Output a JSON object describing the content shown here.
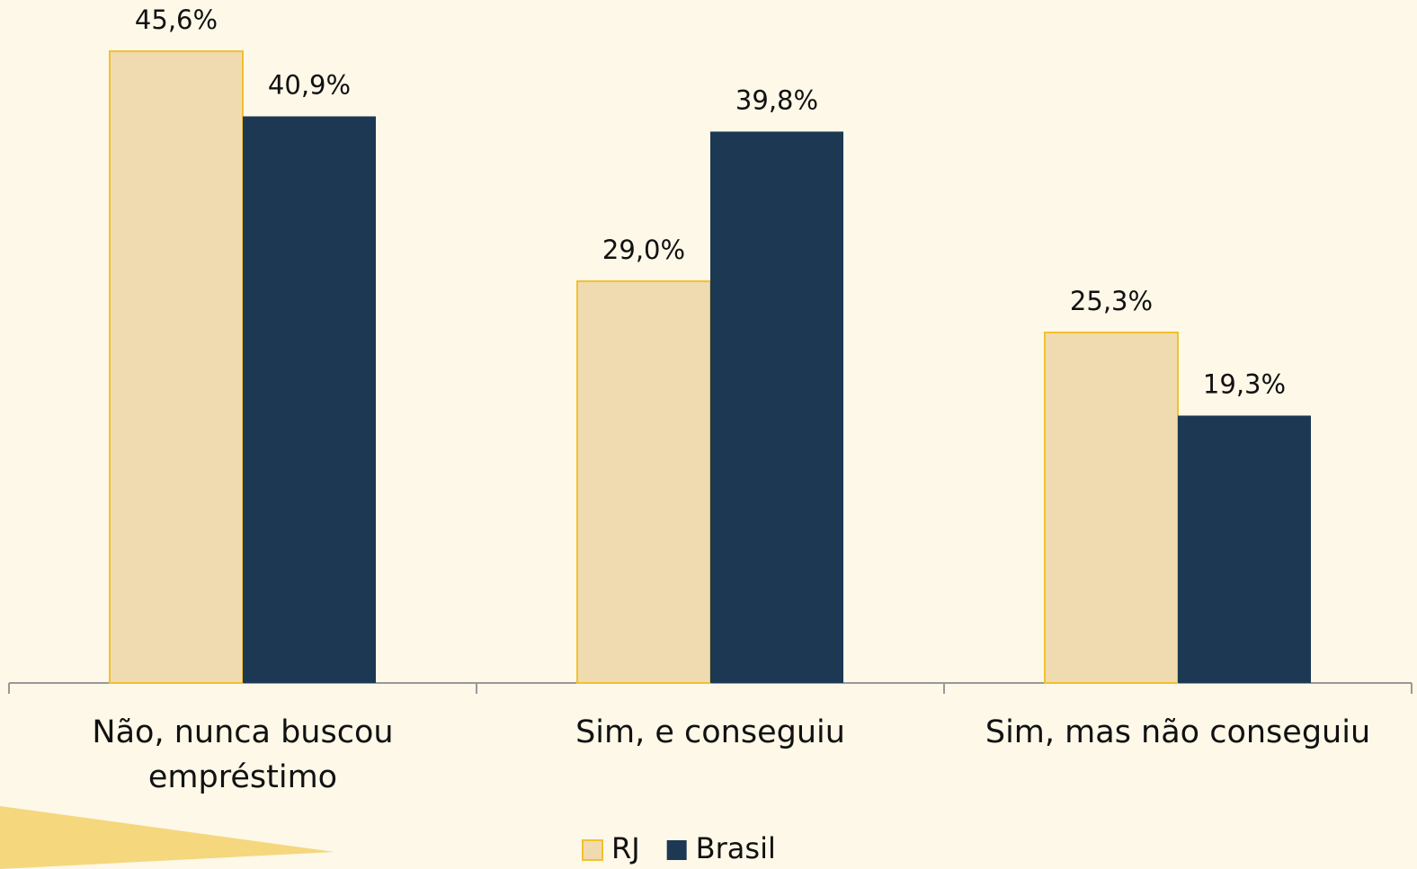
{
  "chart_data": {
    "type": "bar",
    "categories": [
      "Não, nunca buscou empréstimo",
      "Sim, e conseguiu",
      "Sim, mas não conseguiu"
    ],
    "series": [
      {
        "name": "RJ",
        "color": "#f0dbb0",
        "stroke": "#f2c12e",
        "values": [
          45.6,
          29.0,
          25.3
        ],
        "value_labels": [
          "45,6%",
          "29,0%",
          "25,3%"
        ]
      },
      {
        "name": "Brasil",
        "color": "#1c3853",
        "values": [
          40.9,
          39.8,
          19.3
        ],
        "value_labels": [
          "40,9%",
          "39,8%",
          "19,3%"
        ]
      }
    ],
    "ylim": [
      0,
      49.3
    ],
    "legend": "bottom"
  }
}
